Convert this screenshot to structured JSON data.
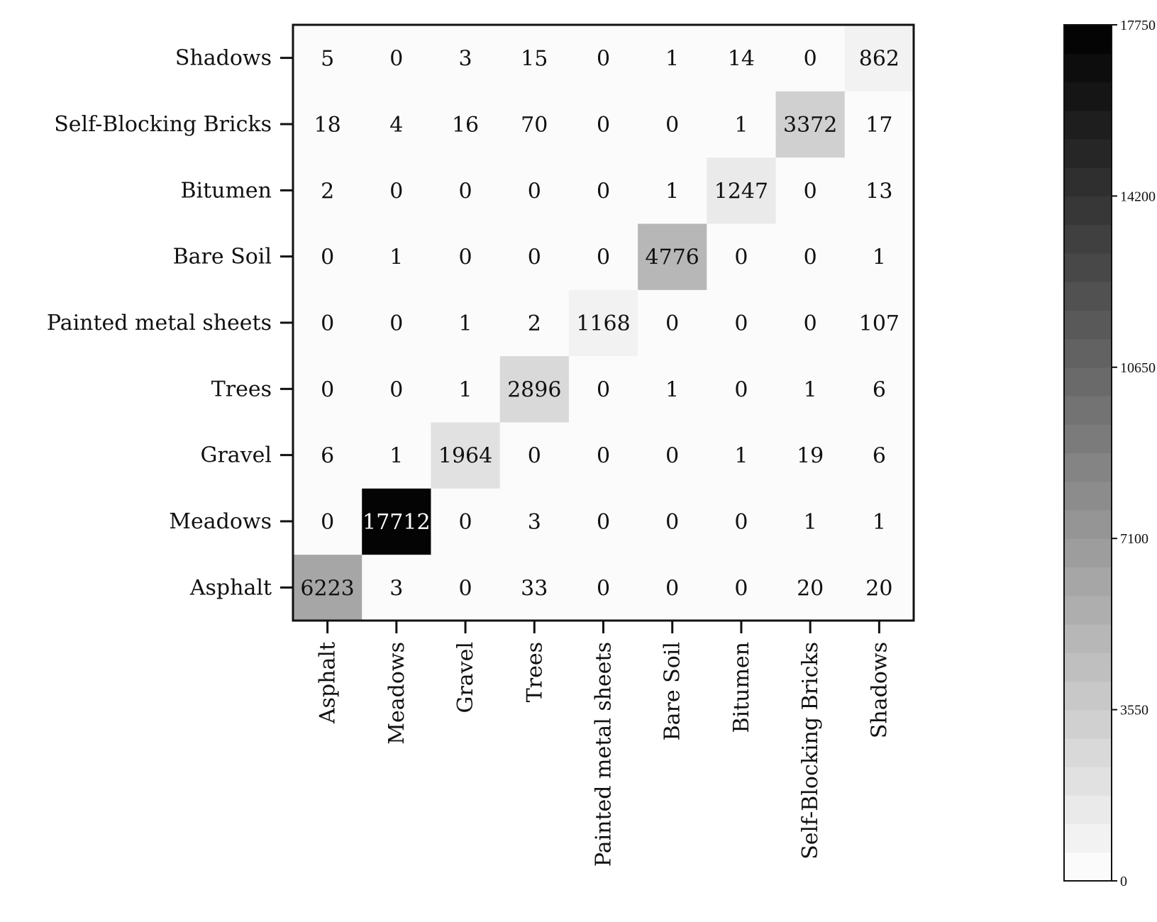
{
  "chart_data": {
    "type": "heatmap",
    "title": "",
    "xlabel": "",
    "ylabel": "",
    "x_categories": [
      "Asphalt",
      "Meadows",
      "Gravel",
      "Trees",
      "Painted metal sheets",
      "Bare Soil",
      "Bitumen",
      "Self-Blocking Bricks",
      "Shadows"
    ],
    "y_categories_bottom_to_top": [
      "Asphalt",
      "Meadows",
      "Gravel",
      "Trees",
      "Painted metal sheets",
      "Bare Soil",
      "Bitumen",
      "Self-Blocking Bricks",
      "Shadows"
    ],
    "rows": [
      {
        "label": "Asphalt",
        "values": [
          6223,
          3,
          0,
          33,
          0,
          0,
          0,
          20,
          20
        ]
      },
      {
        "label": "Meadows",
        "values": [
          0,
          17712,
          0,
          3,
          0,
          0,
          0,
          1,
          1
        ]
      },
      {
        "label": "Gravel",
        "values": [
          6,
          1,
          1964,
          0,
          0,
          0,
          1,
          19,
          6
        ]
      },
      {
        "label": "Trees",
        "values": [
          0,
          0,
          1,
          2896,
          0,
          1,
          0,
          1,
          6
        ]
      },
      {
        "label": "Painted metal sheets",
        "values": [
          0,
          0,
          1,
          2,
          1168,
          0,
          0,
          0,
          107
        ]
      },
      {
        "label": "Bare Soil",
        "values": [
          0,
          1,
          0,
          0,
          0,
          4776,
          0,
          0,
          1
        ]
      },
      {
        "label": "Bitumen",
        "values": [
          2,
          0,
          0,
          0,
          0,
          1,
          1247,
          0,
          13
        ]
      },
      {
        "label": "Self-Blocking Bricks",
        "values": [
          18,
          4,
          16,
          70,
          0,
          0,
          1,
          3372,
          17
        ]
      },
      {
        "label": "Shadows",
        "values": [
          5,
          0,
          3,
          15,
          0,
          1,
          14,
          0,
          862
        ]
      }
    ],
    "colorbar": {
      "min": 0,
      "max": 17750,
      "levels": 30,
      "ticks": [
        0,
        3550,
        7100,
        10650,
        14200,
        17750
      ],
      "color_low": "#ffffff",
      "color_high": "#000000"
    },
    "grid": false
  }
}
